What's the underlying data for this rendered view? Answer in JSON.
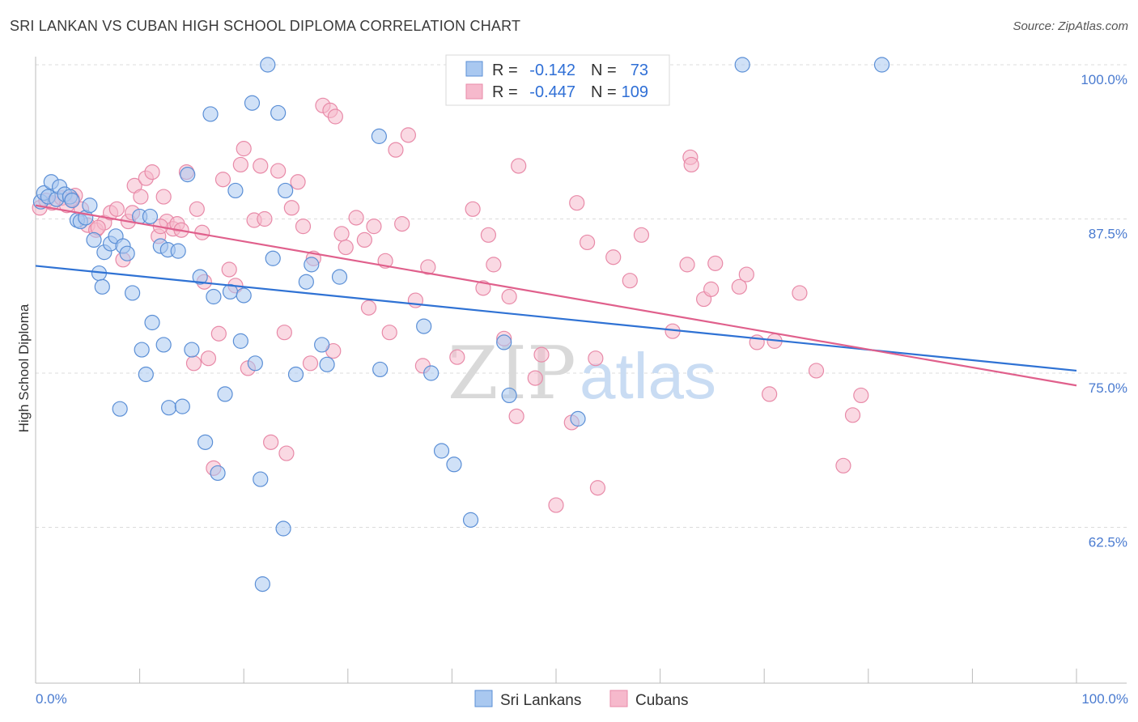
{
  "title": "SRI LANKAN VS CUBAN HIGH SCHOOL DIPLOMA CORRELATION CHART",
  "source": "Source: ZipAtlas.com",
  "watermark": {
    "zip": "ZIP",
    "atlas": "atlas"
  },
  "colors": {
    "sri_lankans_fill": "#a9c8f0",
    "sri_lankans_stroke": "#5b8fd6",
    "sri_lankans_line": "#2f72d4",
    "cubans_fill": "#f6b9cc",
    "cubans_stroke": "#e88aa8",
    "cubans_line": "#e0608c",
    "tick_text": "#4a7bd0"
  },
  "chart_data": {
    "type": "scatter",
    "title": "SRI LANKAN VS CUBAN HIGH SCHOOL DIPLOMA CORRELATION CHART",
    "xlabel": "",
    "ylabel": "High School Diploma",
    "xlim": [
      0,
      100
    ],
    "ylim": [
      51.5,
      101.5
    ],
    "x_tick_labels": [
      "0.0%",
      "100.0%"
    ],
    "y_ticks": [
      {
        "value": 100.0,
        "label": "100.0%"
      },
      {
        "value": 87.5,
        "label": "87.5%"
      },
      {
        "value": 75.0,
        "label": "75.0%"
      },
      {
        "value": 62.5,
        "label": "62.5%"
      }
    ],
    "legend": [
      {
        "name": "Sri Lankans",
        "r_label": "R =",
        "r": "-0.142",
        "n_label": "N =",
        "n": "73"
      },
      {
        "name": "Cubans",
        "r_label": "R =",
        "r": "-0.447",
        "n_label": "N =",
        "n": "109"
      }
    ],
    "series": [
      {
        "name": "Sri Lankans",
        "trend": {
          "x": [
            0,
            100
          ],
          "y": [
            83.7,
            75.2
          ]
        },
        "points": [
          [
            0.5,
            88.9
          ],
          [
            0.8,
            89.6
          ],
          [
            1.2,
            89.3
          ],
          [
            1.5,
            90.5
          ],
          [
            2.0,
            89.1
          ],
          [
            2.3,
            90.1
          ],
          [
            2.8,
            89.5
          ],
          [
            3.3,
            89.3
          ],
          [
            3.5,
            89.0
          ],
          [
            4.0,
            87.4
          ],
          [
            4.3,
            87.3
          ],
          [
            4.8,
            87.6
          ],
          [
            5.2,
            88.6
          ],
          [
            5.6,
            85.8
          ],
          [
            6.1,
            83.1
          ],
          [
            6.4,
            82.0
          ],
          [
            6.6,
            84.8
          ],
          [
            7.2,
            85.5
          ],
          [
            7.7,
            86.1
          ],
          [
            8.4,
            85.3
          ],
          [
            8.8,
            84.7
          ],
          [
            9.3,
            81.5
          ],
          [
            10.0,
            87.7
          ],
          [
            10.2,
            76.9
          ],
          [
            10.6,
            74.9
          ],
          [
            11.0,
            87.7
          ],
          [
            11.2,
            79.1
          ],
          [
            12.0,
            85.3
          ],
          [
            12.3,
            77.3
          ],
          [
            12.7,
            85.0
          ],
          [
            12.8,
            72.2
          ],
          [
            13.7,
            84.9
          ],
          [
            14.1,
            72.3
          ],
          [
            14.6,
            91.1
          ],
          [
            15.0,
            76.9
          ],
          [
            15.8,
            82.8
          ],
          [
            16.3,
            69.4
          ],
          [
            16.8,
            96.0
          ],
          [
            17.1,
            81.2
          ],
          [
            17.5,
            66.9
          ],
          [
            18.2,
            73.3
          ],
          [
            18.7,
            81.6
          ],
          [
            19.2,
            89.8
          ],
          [
            19.7,
            77.6
          ],
          [
            20.0,
            81.3
          ],
          [
            20.8,
            96.9
          ],
          [
            21.1,
            75.8
          ],
          [
            21.6,
            66.4
          ],
          [
            22.3,
            100.0
          ],
          [
            22.8,
            84.3
          ],
          [
            23.3,
            96.1
          ],
          [
            23.8,
            62.4
          ],
          [
            24.0,
            89.8
          ],
          [
            25.0,
            74.9
          ],
          [
            26.0,
            82.4
          ],
          [
            26.5,
            83.8
          ],
          [
            27.5,
            77.3
          ],
          [
            28.0,
            75.7
          ],
          [
            29.2,
            82.8
          ],
          [
            33.0,
            94.2
          ],
          [
            33.1,
            75.3
          ],
          [
            37.3,
            78.8
          ],
          [
            38.0,
            75.0
          ],
          [
            39.0,
            68.7
          ],
          [
            40.2,
            67.6
          ],
          [
            41.8,
            63.1
          ],
          [
            45.0,
            77.5
          ],
          [
            45.5,
            73.2
          ],
          [
            52.1,
            71.3
          ],
          [
            67.9,
            100.0
          ],
          [
            81.3,
            100.0
          ],
          [
            21.8,
            57.9
          ],
          [
            8.1,
            72.1
          ]
        ]
      },
      {
        "name": "Cubans",
        "trend": {
          "x": [
            0,
            100
          ],
          "y": [
            88.6,
            74.0
          ]
        },
        "points": [
          [
            0.4,
            88.4
          ],
          [
            1.0,
            89.0
          ],
          [
            1.6,
            88.8
          ],
          [
            2.5,
            89.2
          ],
          [
            3.0,
            88.6
          ],
          [
            3.8,
            89.4
          ],
          [
            4.4,
            88.3
          ],
          [
            5.0,
            87.0
          ],
          [
            5.8,
            86.6
          ],
          [
            6.6,
            87.2
          ],
          [
            7.2,
            88.0
          ],
          [
            7.8,
            88.3
          ],
          [
            8.4,
            84.2
          ],
          [
            8.9,
            87.3
          ],
          [
            9.5,
            90.2
          ],
          [
            10.1,
            89.3
          ],
          [
            10.6,
            90.8
          ],
          [
            11.2,
            91.3
          ],
          [
            11.8,
            86.1
          ],
          [
            12.3,
            89.3
          ],
          [
            12.6,
            87.3
          ],
          [
            13.2,
            86.7
          ],
          [
            13.6,
            87.1
          ],
          [
            14.0,
            86.6
          ],
          [
            14.5,
            91.3
          ],
          [
            15.2,
            75.8
          ],
          [
            15.5,
            88.3
          ],
          [
            16.2,
            82.4
          ],
          [
            16.6,
            76.2
          ],
          [
            17.1,
            67.3
          ],
          [
            17.6,
            78.2
          ],
          [
            18.0,
            90.7
          ],
          [
            18.6,
            83.4
          ],
          [
            19.2,
            82.1
          ],
          [
            19.7,
            91.9
          ],
          [
            20.0,
            93.2
          ],
          [
            20.4,
            75.4
          ],
          [
            21.0,
            87.4
          ],
          [
            21.6,
            91.8
          ],
          [
            22.0,
            87.5
          ],
          [
            22.6,
            69.4
          ],
          [
            23.3,
            91.4
          ],
          [
            23.9,
            78.3
          ],
          [
            24.1,
            68.5
          ],
          [
            24.6,
            88.4
          ],
          [
            25.2,
            90.5
          ],
          [
            25.7,
            86.9
          ],
          [
            26.4,
            75.8
          ],
          [
            26.7,
            84.3
          ],
          [
            27.6,
            96.7
          ],
          [
            28.3,
            96.3
          ],
          [
            28.6,
            76.8
          ],
          [
            28.8,
            95.8
          ],
          [
            29.4,
            86.3
          ],
          [
            29.8,
            85.2
          ],
          [
            30.8,
            87.6
          ],
          [
            31.6,
            85.8
          ],
          [
            32.0,
            80.3
          ],
          [
            32.5,
            86.9
          ],
          [
            33.6,
            84.1
          ],
          [
            34.0,
            78.3
          ],
          [
            34.6,
            93.1
          ],
          [
            35.2,
            87.1
          ],
          [
            35.8,
            94.3
          ],
          [
            36.5,
            80.9
          ],
          [
            37.2,
            75.6
          ],
          [
            37.7,
            83.6
          ],
          [
            40.5,
            76.3
          ],
          [
            42.0,
            88.3
          ],
          [
            43.0,
            81.9
          ],
          [
            43.5,
            86.2
          ],
          [
            44.0,
            83.8
          ],
          [
            45.0,
            77.8
          ],
          [
            45.5,
            81.2
          ],
          [
            46.2,
            71.5
          ],
          [
            46.4,
            91.8
          ],
          [
            48.0,
            74.6
          ],
          [
            48.6,
            76.5
          ],
          [
            50.0,
            64.3
          ],
          [
            51.5,
            71.0
          ],
          [
            52.0,
            88.8
          ],
          [
            53.0,
            85.6
          ],
          [
            53.8,
            76.2
          ],
          [
            54.0,
            65.7
          ],
          [
            55.5,
            84.4
          ],
          [
            57.1,
            82.5
          ],
          [
            58.2,
            86.2
          ],
          [
            61.2,
            78.4
          ],
          [
            62.6,
            83.8
          ],
          [
            62.9,
            92.5
          ],
          [
            63.0,
            91.9
          ],
          [
            64.2,
            81.0
          ],
          [
            64.9,
            81.8
          ],
          [
            65.3,
            83.9
          ],
          [
            67.6,
            82.0
          ],
          [
            68.3,
            83.0
          ],
          [
            69.3,
            77.5
          ],
          [
            70.5,
            73.3
          ],
          [
            71.0,
            77.6
          ],
          [
            73.4,
            81.5
          ],
          [
            75.0,
            75.2
          ],
          [
            77.6,
            67.5
          ],
          [
            78.5,
            71.6
          ],
          [
            79.3,
            73.2
          ],
          [
            16.0,
            86.4
          ],
          [
            12.0,
            86.9
          ],
          [
            6.0,
            86.8
          ],
          [
            3.5,
            89.1
          ],
          [
            9.3,
            88.0
          ]
        ]
      }
    ]
  }
}
